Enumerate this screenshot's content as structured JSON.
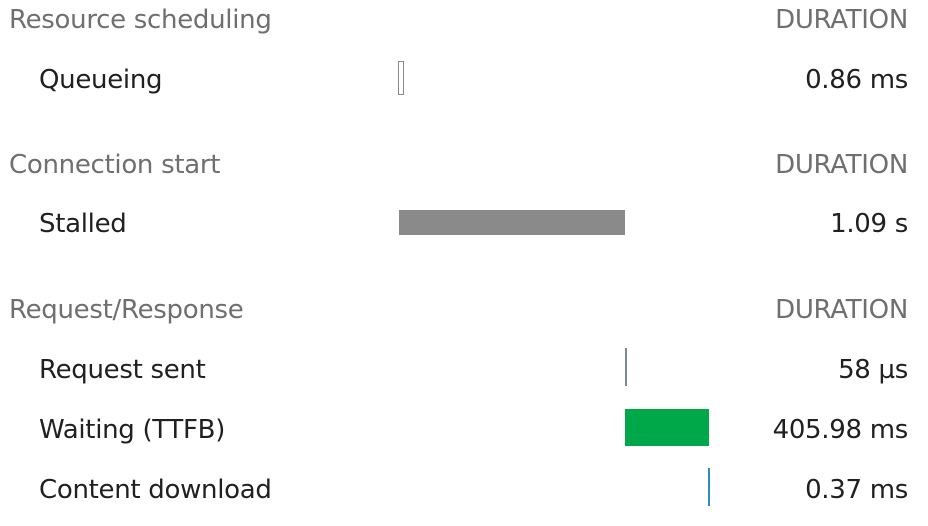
{
  "sections": [
    {
      "title": "Resource scheduling",
      "duration_header": "DURATION",
      "phases": [
        {
          "label": "Queueing",
          "value": "0.86 ms"
        }
      ]
    },
    {
      "title": "Connection start",
      "duration_header": "DURATION",
      "phases": [
        {
          "label": "Stalled",
          "value": "1.09 s"
        }
      ]
    },
    {
      "title": "Request/Response",
      "duration_header": "DURATION",
      "phases": [
        {
          "label": "Request sent",
          "value": "58 µs"
        },
        {
          "label": "Waiting (TTFB)",
          "value": "405.98 ms"
        },
        {
          "label": "Content download",
          "value": "0.37 ms"
        }
      ]
    }
  ],
  "colors": {
    "queueing": "#ffffff",
    "stalled": "#8a8a8a",
    "request_sent": "#7a8a8f",
    "waiting": "#00a84a",
    "content_download": "#2a8fbd"
  }
}
